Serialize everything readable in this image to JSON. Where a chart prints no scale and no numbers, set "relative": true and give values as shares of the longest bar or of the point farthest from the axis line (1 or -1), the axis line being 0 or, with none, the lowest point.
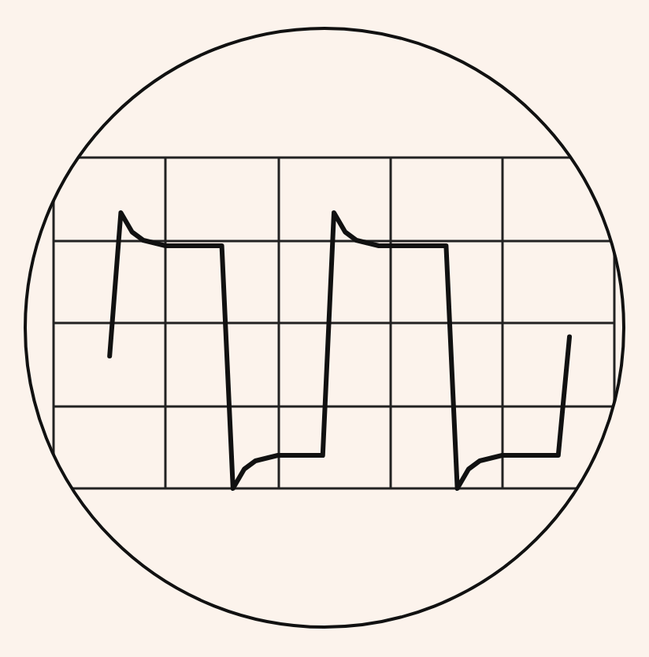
{
  "chart_data": {
    "type": "line",
    "relative": true,
    "grid": true,
    "line_style": "solid",
    "categories": [
      null,
      null,
      null,
      null,
      null,
      null,
      null,
      null,
      null,
      null,
      null,
      null,
      null,
      null,
      null,
      null,
      null,
      null,
      null,
      null,
      null,
      null,
      null,
      null,
      null,
      null,
      null,
      null,
      null,
      null,
      null,
      null,
      null,
      null,
      null,
      null,
      null,
      null,
      null,
      null,
      null,
      null,
      null,
      null,
      null,
      null,
      null,
      null,
      null,
      null,
      null
    ],
    "series": [
      {
        "color": "#111111",
        "values": [
          null,
          null,
          null,
          null,
          null,
          0.48,
          1.0,
          0.93,
          0.9,
          0.89,
          0.88,
          0.88,
          0.88,
          0.88,
          0.88,
          0.88,
          0.0,
          0.07,
          0.1,
          0.11,
          0.12,
          0.12,
          0.12,
          0.12,
          0.12,
          1.0,
          0.93,
          0.9,
          0.89,
          0.88,
          0.88,
          0.88,
          0.88,
          0.88,
          0.88,
          0.88,
          0.0,
          0.07,
          0.1,
          0.11,
          0.12,
          0.12,
          0.12,
          0.12,
          0.12,
          0.12,
          0.55,
          null,
          null,
          null,
          null
        ]
      }
    ]
  }
}
